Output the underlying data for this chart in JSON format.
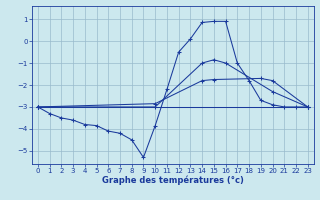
{
  "xlabel": "Graphe des températures (°c)",
  "bg_color": "#cce8ee",
  "line_color": "#1a3a9c",
  "grid_color": "#99bbcc",
  "xlim": [
    -0.5,
    23.5
  ],
  "ylim": [
    -5.6,
    1.6
  ],
  "xticks": [
    0,
    1,
    2,
    3,
    4,
    5,
    6,
    7,
    8,
    9,
    10,
    11,
    12,
    13,
    14,
    15,
    16,
    17,
    18,
    19,
    20,
    21,
    22,
    23
  ],
  "yticks": [
    -5,
    -4,
    -3,
    -2,
    -1,
    0,
    1
  ],
  "lines": [
    {
      "x": [
        0,
        1,
        2,
        3,
        4,
        5,
        6,
        7,
        8,
        9,
        10,
        11,
        12,
        13,
        14,
        15,
        16,
        17,
        18,
        19,
        20,
        21,
        22,
        23
      ],
      "y": [
        -3.0,
        -3.3,
        -3.5,
        -3.6,
        -3.8,
        -3.85,
        -4.1,
        -4.2,
        -4.5,
        -5.3,
        -3.85,
        -2.2,
        -0.5,
        0.1,
        0.85,
        0.9,
        0.9,
        -1.0,
        -1.8,
        -2.7,
        -2.9,
        -3.0,
        -3.0,
        -3.0
      ]
    },
    {
      "x": [
        0,
        10,
        14,
        15,
        16,
        20,
        23
      ],
      "y": [
        -3.0,
        -3.0,
        -1.0,
        -0.85,
        -1.0,
        -2.3,
        -3.0
      ]
    },
    {
      "x": [
        0,
        10,
        14,
        15,
        19,
        20,
        23
      ],
      "y": [
        -3.0,
        -2.85,
        -1.8,
        -1.75,
        -1.7,
        -1.8,
        -3.0
      ]
    },
    {
      "x": [
        0,
        23
      ],
      "y": [
        -3.0,
        -3.0
      ]
    }
  ]
}
